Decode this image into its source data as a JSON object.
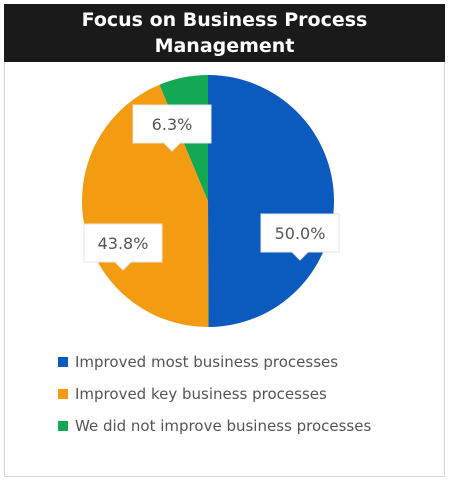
{
  "title": {
    "line1": "Focus on Business Process",
    "line2": "Management"
  },
  "chart_data": {
    "type": "pie",
    "title": "Focus on Business Process Management",
    "slices": [
      {
        "label": "Improved most business processes",
        "value": 50.0,
        "display": "50.0%",
        "color": "#0a5bbd"
      },
      {
        "label": "Improved key business processes",
        "value": 43.8,
        "display": "43.8%",
        "color": "#f39c12"
      },
      {
        "label": "We did not improve business processes",
        "value": 6.3,
        "display": "6.3%",
        "color": "#12a854"
      }
    ],
    "legend_position": "bottom-left"
  }
}
